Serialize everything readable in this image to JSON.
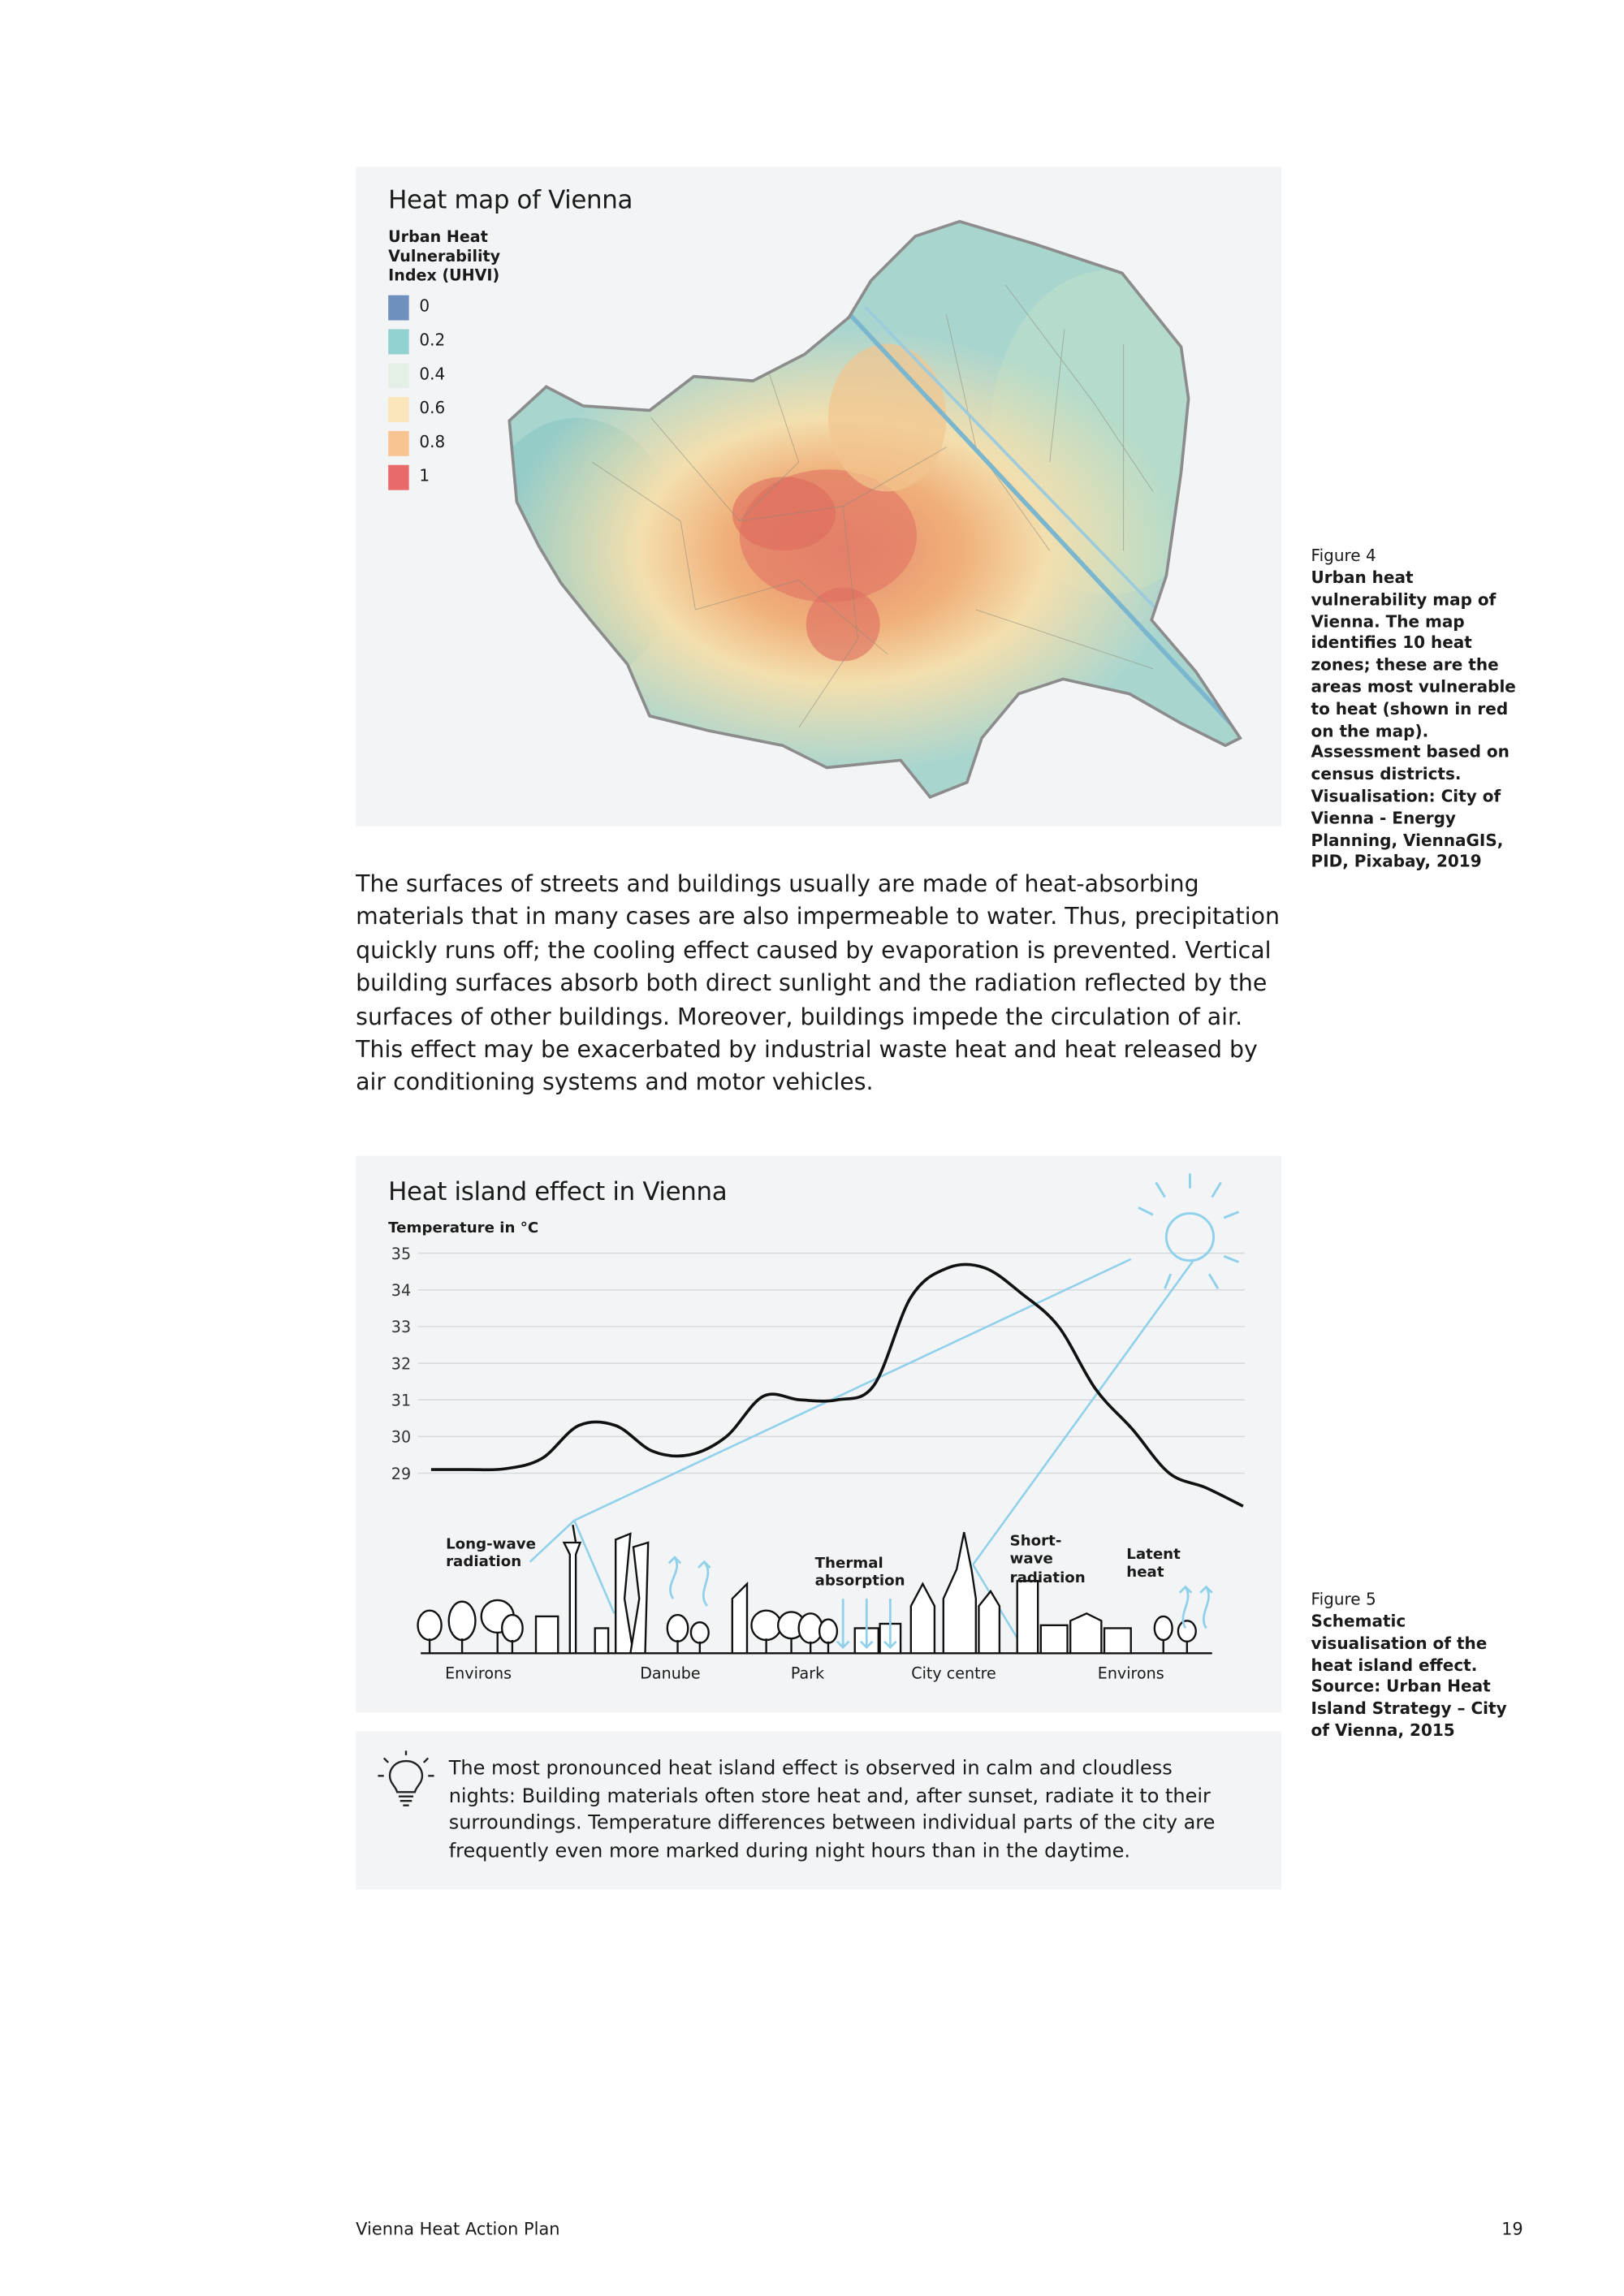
{
  "figure4": {
    "title": "Heat map of Vienna",
    "legend": {
      "title": "Urban Heat Vulnerability Index (UHVI)",
      "items": [
        {
          "label": "0",
          "color": "#6f8fbf"
        },
        {
          "label": "0.2",
          "color": "#93d0d0"
        },
        {
          "label": "0.4",
          "color": "#e4efe6"
        },
        {
          "label": "0.6",
          "color": "#fbe6bb"
        },
        {
          "label": "0.8",
          "color": "#f8c492"
        },
        {
          "label": "1",
          "color": "#e86a6a"
        }
      ]
    },
    "caption": {
      "label": "Figure 4",
      "text": "Urban heat vulnerability map of Vienna. The map identifies 10 heat zones; these are the areas most vulnerable to heat (shown in red on the map). Assessment based on census districts. Visualisation: City of Vienna - Energy Planning, ViennaGIS, PID, Pixabay, 2019"
    }
  },
  "body_text": "The surfaces of streets and buildings usually are made of heat-absorbing materials that in many cases are also impermeable to water. Thus, precipitation quickly runs off; the cooling effect caused by evaporation is prevented. Vertical building surfaces absorb both direct sunlight and the radiation reflected by the surfaces of other buildings. Moreover, buildings impede the circulation of air. This effect may be exacerbated by industrial waste heat and heat released by air conditioning systems and motor vehicles.",
  "figure5": {
    "title": "Heat island effect in Vienna",
    "axis_label": "Temperature in °C",
    "yticks": [
      35,
      34,
      33,
      32,
      31,
      30,
      29
    ],
    "temperature_curve": [
      29.1,
      29.1,
      29.12,
      29.4,
      30.3,
      30.3,
      29.6,
      29.5,
      30.0,
      31.1,
      31.0,
      31.0,
      31.4,
      33.8,
      34.6,
      34.6,
      33.9,
      33.0,
      31.3,
      30.2,
      29.0,
      28.6,
      28.1
    ],
    "annotations": [
      "Long-wave radiation",
      "Thermal absorption",
      "Short-wave radiation",
      "Latent heat"
    ],
    "locations": [
      "Environs",
      "Danube",
      "Park",
      "City centre",
      "Environs"
    ],
    "caption": {
      "label": "Figure 5",
      "text": "Schematic visualisation of the heat island effect. Source: Urban Heat Island Strategy – City of Vienna, 2015"
    }
  },
  "tip": "The most pronounced heat island effect is observed in calm and cloudless nights: Building materials often store heat and, after sunset, radiate it to their surroundings. Temperature differences between individual parts of the city are frequently even more marked during night hours than in the daytime.",
  "footer": {
    "title": "Vienna Heat Action Plan",
    "page": "19"
  }
}
